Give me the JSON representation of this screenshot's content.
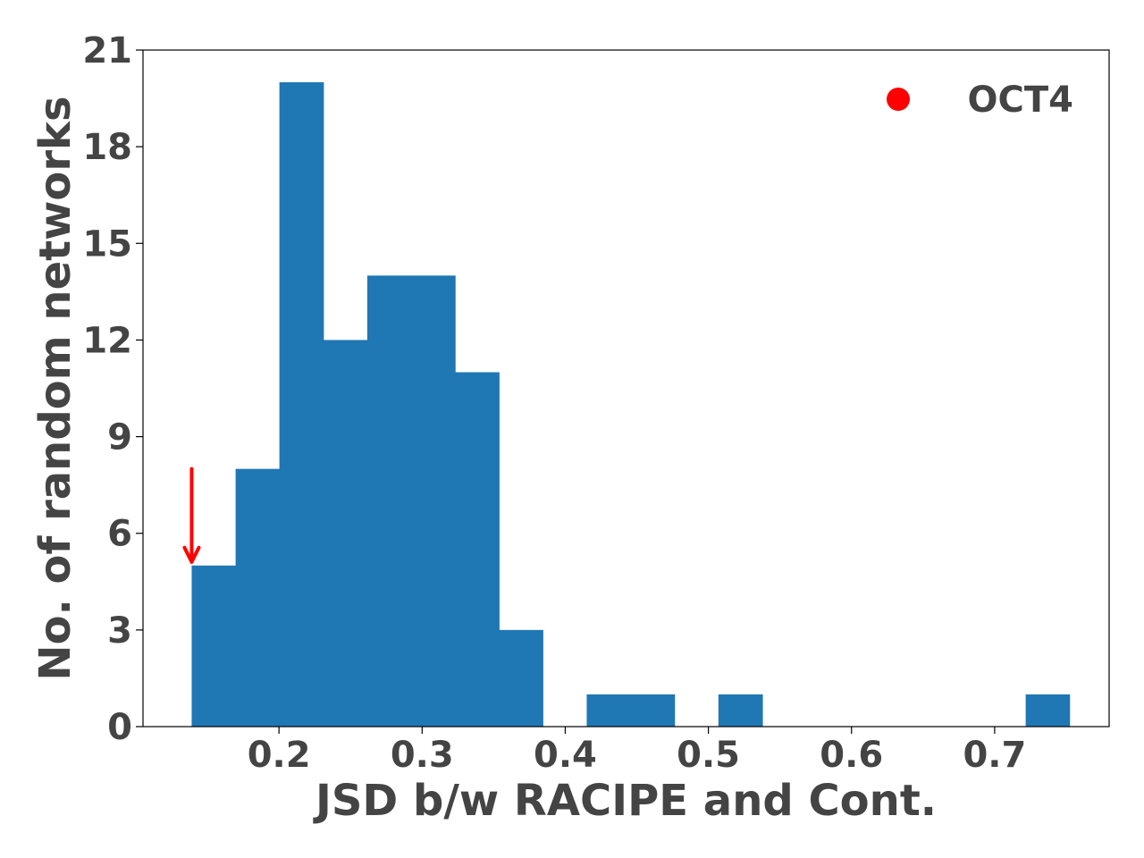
{
  "chart_data": {
    "type": "bar",
    "subtype": "histogram",
    "bin_edges": [
      0.139,
      0.1697,
      0.2003,
      0.231,
      0.2617,
      0.2923,
      0.323,
      0.3537,
      0.3843,
      0.415,
      0.4457,
      0.4763,
      0.507,
      0.5377,
      0.5683,
      0.599,
      0.6297,
      0.6603,
      0.691,
      0.7217,
      0.7523
    ],
    "counts": [
      5,
      8,
      20,
      12,
      14,
      14,
      11,
      3,
      0,
      1,
      1,
      0,
      1,
      0,
      0,
      0,
      0,
      0,
      0,
      1
    ],
    "xlabel": "JSD b/w RACIPE and Cont.",
    "ylabel": "No. of random networks",
    "xlim": [
      0.105,
      0.78
    ],
    "ylim": [
      0,
      21
    ],
    "xticks": [
      0.2,
      0.3,
      0.4,
      0.5,
      0.6,
      0.7
    ],
    "xtick_labels": [
      "0.2",
      "0.3",
      "0.4",
      "0.5",
      "0.6",
      "0.7"
    ],
    "yticks": [
      0,
      3,
      6,
      9,
      12,
      15,
      18,
      21
    ],
    "ytick_labels": [
      "0",
      "3",
      "6",
      "9",
      "12",
      "15",
      "18",
      "21"
    ],
    "bar_color": "#1f77b4",
    "grid": false,
    "legend": {
      "position": "top-right",
      "entries": [
        {
          "label": "OCT4",
          "marker": "circle",
          "color": "#ff0000"
        }
      ]
    },
    "annotation": {
      "type": "arrow",
      "color": "#ff0000",
      "x": 0.139,
      "y_from": 8,
      "y_to": 5
    }
  }
}
